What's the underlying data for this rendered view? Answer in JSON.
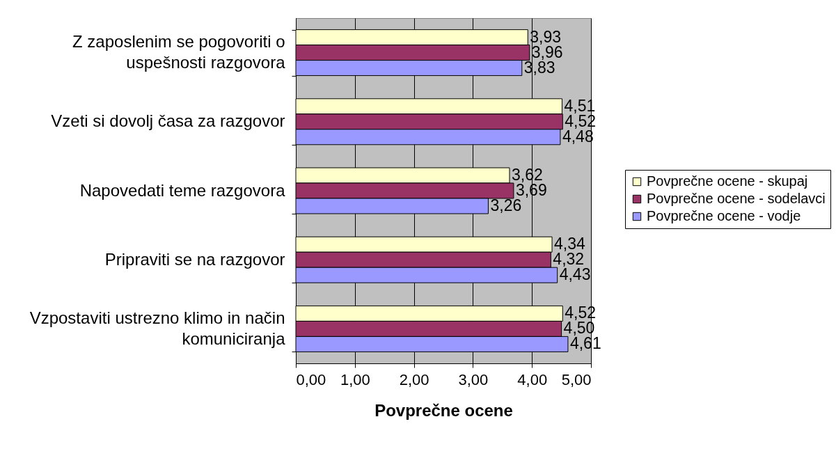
{
  "chart_data": {
    "type": "bar",
    "orientation": "horizontal",
    "categories": [
      "Z zaposlenim se pogovoriti o uspešnosti razgovora",
      "Vzeti si dovolj časa za razgovor",
      "Napovedati teme razgovora",
      "Pripraviti se na razgovor",
      "Vzpostaviti ustrezno klimo in način komuniciranja"
    ],
    "series": [
      {
        "name": "Povprečne ocene - skupaj",
        "color": "#ffffcc",
        "values": [
          3.93,
          4.51,
          3.62,
          4.34,
          4.52
        ],
        "value_labels": [
          "3,93",
          "4,51",
          "3,62",
          "4,34",
          "4,52"
        ]
      },
      {
        "name": "Povprečne ocene - sodelavci",
        "color": "#993366",
        "values": [
          3.96,
          4.52,
          3.69,
          4.32,
          4.5
        ],
        "value_labels": [
          "3,96",
          "4,52",
          "3,69",
          "4,32",
          "4,50"
        ]
      },
      {
        "name": "Povprečne ocene - vodje",
        "color": "#9999ff",
        "values": [
          3.83,
          4.48,
          3.26,
          4.43,
          4.61
        ],
        "value_labels": [
          "3,83",
          "4,48",
          "3,26",
          "4,43",
          "4,61"
        ]
      }
    ],
    "xlabel": "Povprečne ocene",
    "xlim": [
      0,
      5
    ],
    "xticks": [
      {
        "value": 0,
        "label": "0,00"
      },
      {
        "value": 1,
        "label": "1,00"
      },
      {
        "value": 2,
        "label": "2,00"
      },
      {
        "value": 3,
        "label": "3,00"
      },
      {
        "value": 4,
        "label": "4,00"
      },
      {
        "value": 5,
        "label": "5,00"
      }
    ],
    "grid": "x",
    "legend": "right"
  }
}
